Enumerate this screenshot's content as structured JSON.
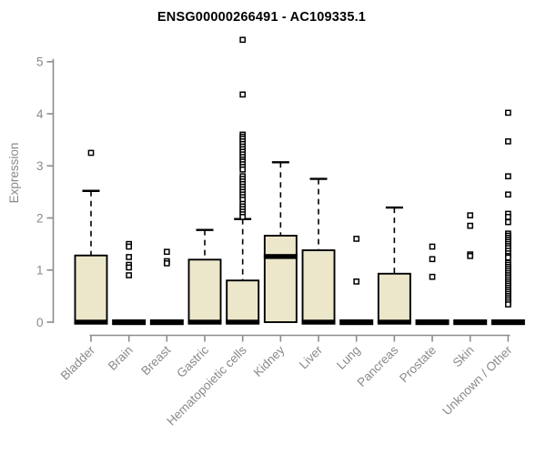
{
  "chart_data": {
    "type": "boxplot",
    "title": "ENSG00000266491 - AC109335.1",
    "ylabel": "Expression",
    "ylim": [
      0,
      5
    ],
    "yticks": [
      0,
      1,
      2,
      3,
      4,
      5
    ],
    "grid": false,
    "legend": false,
    "categories": [
      "Bladder",
      "Brain",
      "Breast",
      "Gastric",
      "Hematopoietic cells",
      "Kidney",
      "Liver",
      "Lung",
      "Pancreas",
      "Prostate",
      "Skin",
      "Unknown / Other"
    ],
    "boxes": [
      {
        "category": "Bladder",
        "q1": 0,
        "median": 0,
        "q3": 1.28,
        "whisker_low": 0,
        "whisker_high": 2.52,
        "outliers": [
          3.25
        ]
      },
      {
        "category": "Brain",
        "q1": 0,
        "median": 0,
        "q3": 0,
        "whisker_low": 0,
        "whisker_high": 0,
        "outliers": [
          1.5,
          1.45,
          1.25,
          1.1,
          1.05,
          0.9
        ]
      },
      {
        "category": "Breast",
        "q1": 0,
        "median": 0,
        "q3": 0,
        "whisker_low": 0,
        "whisker_high": 0,
        "outliers": [
          1.35,
          1.17,
          1.13
        ]
      },
      {
        "category": "Gastric",
        "q1": 0,
        "median": 0,
        "q3": 1.2,
        "whisker_low": 0,
        "whisker_high": 1.77,
        "outliers": []
      },
      {
        "category": "Hematopoietic cells",
        "q1": 0,
        "median": 0,
        "q3": 0.8,
        "whisker_low": 0,
        "whisker_high": 1.98,
        "outliers": [
          5.42,
          4.37,
          3.6,
          3.56,
          3.52,
          3.47,
          3.42,
          3.37,
          3.32,
          3.27,
          3.22,
          3.17,
          3.12,
          3.08,
          3.03,
          2.98,
          2.93,
          2.8,
          2.75,
          2.7,
          2.65,
          2.6,
          2.55,
          2.5,
          2.45,
          2.4,
          2.35,
          2.27,
          2.22,
          2.17,
          2.12,
          2.07,
          2.02
        ]
      },
      {
        "category": "Kidney",
        "q1": 0,
        "median": 1.26,
        "q3": 1.66,
        "whisker_low": 0,
        "whisker_high": 3.07,
        "outliers": []
      },
      {
        "category": "Liver",
        "q1": 0,
        "median": 0,
        "q3": 1.38,
        "whisker_low": 0,
        "whisker_high": 2.75,
        "outliers": []
      },
      {
        "category": "Lung",
        "q1": 0,
        "median": 0,
        "q3": 0,
        "whisker_low": 0,
        "whisker_high": 0,
        "outliers": [
          1.6,
          0.78
        ]
      },
      {
        "category": "Pancreas",
        "q1": 0,
        "median": 0,
        "q3": 0.93,
        "whisker_low": 0,
        "whisker_high": 2.2,
        "outliers": []
      },
      {
        "category": "Prostate",
        "q1": 0,
        "median": 0,
        "q3": 0,
        "whisker_low": 0,
        "whisker_high": 0,
        "outliers": [
          1.45,
          1.21,
          0.87
        ]
      },
      {
        "category": "Skin",
        "q1": 0,
        "median": 0,
        "q3": 0,
        "whisker_low": 0,
        "whisker_high": 0,
        "outliers": [
          2.05,
          1.85,
          1.3,
          1.27
        ]
      },
      {
        "category": "Unknown / Other",
        "q1": 0,
        "median": 0,
        "q3": 0,
        "whisker_low": 0,
        "whisker_high": 0,
        "outliers": [
          4.02,
          3.47,
          2.8,
          2.45,
          2.08,
          2.02,
          1.92,
          1.7,
          1.66,
          1.62,
          1.58,
          1.54,
          1.5,
          1.46,
          1.42,
          1.37,
          1.32,
          1.27,
          1.24,
          1.14,
          1.1,
          1.06,
          1.02,
          0.98,
          0.94,
          0.9,
          0.86,
          0.82,
          0.78,
          0.74,
          0.7,
          0.66,
          0.62,
          0.58,
          0.54,
          0.5,
          0.46,
          0.42,
          0.38,
          0.34
        ]
      }
    ],
    "colors": {
      "box_fill": "#ece7cb",
      "box_stroke": "#000000",
      "median": "#000000",
      "outlier_stroke": "#000000",
      "outlier_fill": "#ffffff",
      "axis": "#8c8c8c",
      "tick_text": "#8a8a8a",
      "title_text": "#000000",
      "background": "#ffffff"
    }
  }
}
